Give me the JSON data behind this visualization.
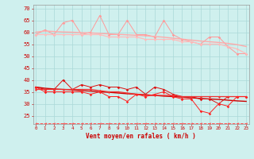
{
  "x": [
    0,
    1,
    2,
    3,
    4,
    5,
    6,
    7,
    8,
    9,
    10,
    11,
    12,
    13,
    14,
    15,
    16,
    17,
    18,
    19,
    20,
    21,
    22,
    23
  ],
  "series": [
    {
      "name": "light_jagged1",
      "color": "#ff9999",
      "linewidth": 0.7,
      "marker": "D",
      "markersize": 1.8,
      "linestyle": "-",
      "values": [
        59,
        61,
        59,
        64,
        65,
        59,
        60,
        67,
        59,
        59,
        65,
        59,
        59,
        58,
        65,
        59,
        57,
        56,
        55,
        58,
        58,
        54,
        51,
        51
      ]
    },
    {
      "name": "light_smooth1",
      "color": "#ffaaaa",
      "linewidth": 1.0,
      "marker": null,
      "markersize": 0,
      "linestyle": "-",
      "values": [
        60,
        60.5,
        60.3,
        60.1,
        60.0,
        59.8,
        59.7,
        59.5,
        59.3,
        59.1,
        58.9,
        58.7,
        58.5,
        58.2,
        57.9,
        57.5,
        57.1,
        56.7,
        56.3,
        56.0,
        55.7,
        55.3,
        54.8,
        54.0
      ]
    },
    {
      "name": "light_smooth2",
      "color": "#ffbbbb",
      "linewidth": 0.9,
      "marker": "D",
      "markersize": 1.5,
      "linestyle": "-",
      "values": [
        59,
        59,
        59,
        59,
        59,
        59,
        59,
        59,
        58,
        58,
        58,
        58,
        57,
        57,
        57,
        57,
        56,
        56,
        55,
        55,
        55,
        54,
        53,
        51
      ]
    },
    {
      "name": "dark_smooth1",
      "color": "#cc0000",
      "linewidth": 1.0,
      "marker": null,
      "markersize": 0,
      "linestyle": "-",
      "values": [
        37,
        36.5,
        36.2,
        36.0,
        35.8,
        35.5,
        35.3,
        35.0,
        34.8,
        34.5,
        34.2,
        34.0,
        33.8,
        33.5,
        33.2,
        33.0,
        32.8,
        32.5,
        32.2,
        32.0,
        31.8,
        31.5,
        31.2,
        31.0
      ]
    },
    {
      "name": "dark_jagged1",
      "color": "#dd1111",
      "linewidth": 0.7,
      "marker": "D",
      "markersize": 1.8,
      "linestyle": "-",
      "values": [
        37,
        36,
        36,
        40,
        36,
        38,
        37,
        38,
        37,
        37,
        36,
        37,
        34,
        37,
        36,
        34,
        33,
        33,
        32,
        32,
        30,
        33,
        33,
        33
      ]
    },
    {
      "name": "dark_smooth2",
      "color": "#ee3333",
      "linewidth": 0.9,
      "marker": "D",
      "markersize": 1.5,
      "linestyle": "-",
      "values": [
        36,
        36,
        36,
        36,
        36,
        36,
        36,
        35.5,
        35,
        35,
        34.5,
        34,
        33.5,
        33.5,
        33.5,
        33.5,
        33,
        33,
        33,
        33,
        33,
        33,
        33,
        33
      ]
    },
    {
      "name": "dark_jagged2",
      "color": "#ff2222",
      "linewidth": 0.7,
      "marker": "D",
      "markersize": 1.8,
      "linestyle": "-",
      "values": [
        37,
        35,
        35,
        35,
        35,
        35,
        34,
        35,
        33,
        33,
        31,
        34,
        33,
        34,
        35,
        33,
        32,
        32,
        27,
        26,
        30,
        29,
        33,
        33
      ]
    },
    {
      "name": "dashed_bottom",
      "color": "#ff5555",
      "linewidth": 0.7,
      "marker": "<",
      "markersize": 1.8,
      "linestyle": "--",
      "values": [
        22,
        22,
        22,
        22,
        22,
        22,
        22,
        22,
        22,
        22,
        22,
        22,
        22,
        22,
        22,
        22,
        22,
        22,
        22,
        22,
        22,
        22,
        22,
        22
      ]
    }
  ],
  "xlim": [
    -0.3,
    23.3
  ],
  "ylim": [
    21.5,
    71.5
  ],
  "yticks": [
    25,
    30,
    35,
    40,
    45,
    50,
    55,
    60,
    65,
    70
  ],
  "xtick_labels": [
    "0",
    "1",
    "2",
    "3",
    "4",
    "5",
    "6",
    "7",
    "8",
    "9",
    "10",
    "11",
    "12",
    "13",
    "14",
    "15",
    "16",
    "17",
    "18",
    "19",
    "20",
    "21",
    "22",
    "23"
  ],
  "xlabel": "Vent moyen/en rafales ( km/h )",
  "background_color": "#cff0ee",
  "grid_color": "#aad8d8",
  "tick_color": "#cc0000",
  "label_color": "#cc0000",
  "spine_color": "#999999"
}
